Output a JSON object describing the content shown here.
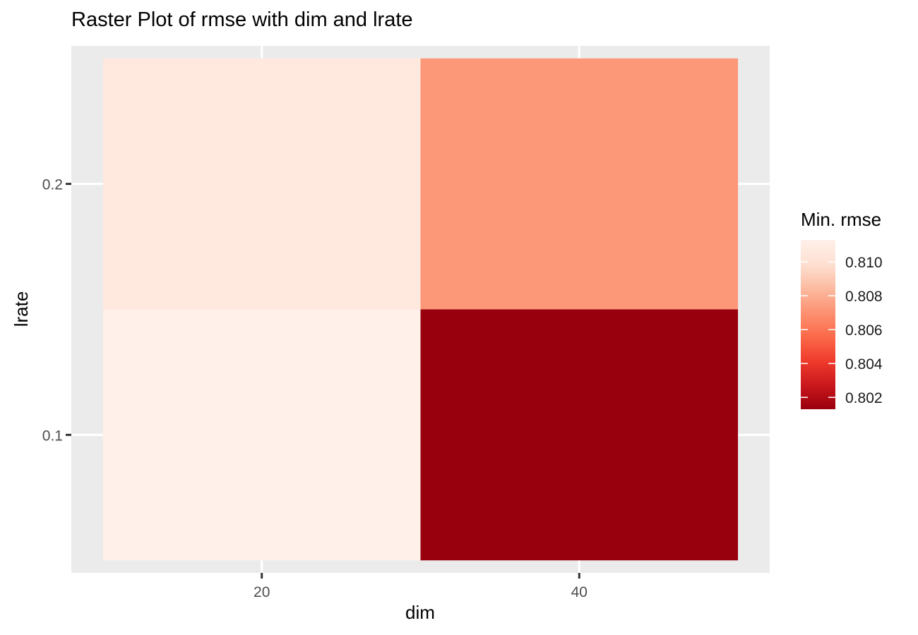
{
  "chart_data": {
    "type": "heatmap",
    "title": "Raster Plot of rmse with dim and lrate",
    "xlabel": "dim",
    "ylabel": "lrate",
    "x_ticks": [
      20,
      40
    ],
    "y_ticks": [
      0.1,
      0.2
    ],
    "xlim": [
      8,
      52
    ],
    "ylim": [
      0.045,
      0.255
    ],
    "cell_width": 20,
    "cell_height": 0.1,
    "cells": [
      {
        "dim": 20,
        "lrate": 0.1,
        "rmse": 0.8113
      },
      {
        "dim": 20,
        "lrate": 0.2,
        "rmse": 0.8106
      },
      {
        "dim": 40,
        "lrate": 0.1,
        "rmse": 0.8013
      },
      {
        "dim": 40,
        "lrate": 0.2,
        "rmse": 0.8072
      }
    ],
    "legend": {
      "title": "Min. rmse",
      "placement": "right",
      "ticks": [
        "0.802",
        "0.804",
        "0.806",
        "0.808",
        "0.810"
      ],
      "min": 0.8013,
      "max": 0.8113,
      "colors": [
        "#99000d",
        "#cb181d",
        "#ef3b2c",
        "#fb6a4a",
        "#fc9272",
        "#fcbba1",
        "#fee0d2",
        "#fff0ea"
      ]
    },
    "panel_background": "#ebebeb",
    "grid": true
  }
}
